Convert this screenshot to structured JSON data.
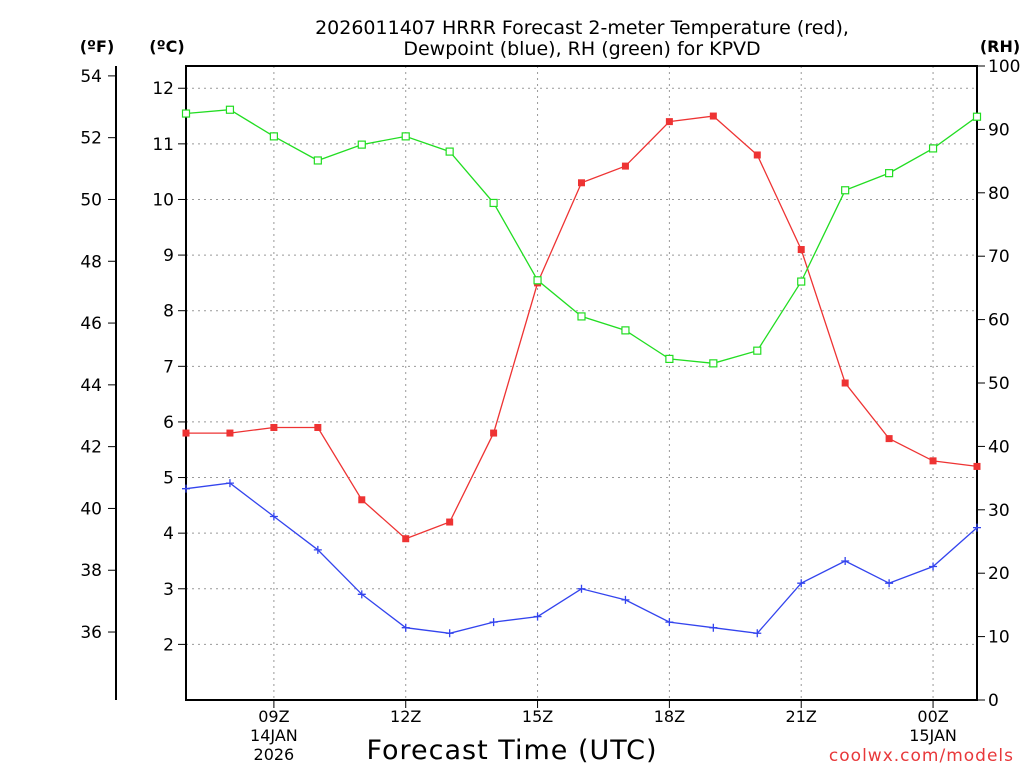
{
  "chart_data": {
    "type": "line",
    "title_line1": "2026011407 HRRR Forecast 2-meter Temperature (red),",
    "title_line2": "Dewpoint (blue), RH (green) for KPVD",
    "xlabel": "Forecast Time (UTC)",
    "credit": "coolwx.com/models",
    "units": {
      "fahrenheit": "(ºF)",
      "celsius": "(ºC)",
      "rh": "(RH)"
    },
    "grid": true,
    "x_hours": [
      7,
      8,
      9,
      10,
      11,
      12,
      13,
      14,
      15,
      16,
      17,
      18,
      19,
      20,
      21,
      22,
      23,
      24,
      25
    ],
    "x_ticks": [
      {
        "hour": 9,
        "label": "09Z",
        "sub1": "14JAN",
        "sub2": "2026"
      },
      {
        "hour": 12,
        "label": "12Z",
        "sub1": "",
        "sub2": ""
      },
      {
        "hour": 15,
        "label": "15Z",
        "sub1": "",
        "sub2": ""
      },
      {
        "hour": 18,
        "label": "18Z",
        "sub1": "",
        "sub2": ""
      },
      {
        "hour": 21,
        "label": "21Z",
        "sub1": "",
        "sub2": ""
      },
      {
        "hour": 24,
        "label": "00Z",
        "sub1": "15JAN",
        "sub2": ""
      }
    ],
    "x_range": [
      7,
      25
    ],
    "celsius_range": [
      1.0,
      12.4
    ],
    "celsius_ticks": [
      "2",
      "3",
      "4",
      "5",
      "6",
      "7",
      "8",
      "9",
      "10",
      "11",
      "12"
    ],
    "fahrenheit_ticks": [
      "36",
      "38",
      "40",
      "42",
      "44",
      "46",
      "48",
      "50",
      "52",
      "54"
    ],
    "rh_range": [
      0,
      100
    ],
    "rh_ticks": [
      "0",
      "10",
      "20",
      "30",
      "40",
      "50",
      "60",
      "70",
      "80",
      "90",
      "100"
    ],
    "series": [
      {
        "name": "Temperature",
        "color": "#ee3333",
        "unit": "C",
        "marker": "filled-square",
        "values": [
          5.8,
          5.8,
          5.9,
          5.9,
          4.6,
          3.9,
          4.2,
          5.8,
          8.5,
          10.3,
          10.6,
          11.4,
          11.5,
          10.8,
          9.1,
          6.7,
          5.7,
          5.3,
          5.2
        ]
      },
      {
        "name": "Dewpoint",
        "color": "#3344ee",
        "unit": "C",
        "marker": "plus",
        "values": [
          4.8,
          4.9,
          4.3,
          3.7,
          2.9,
          2.3,
          2.2,
          2.4,
          2.5,
          3.0,
          2.8,
          2.4,
          2.3,
          2.2,
          3.1,
          3.5,
          3.1,
          3.4,
          4.1
        ]
      },
      {
        "name": "RH",
        "color": "#22dd22",
        "unit": "%",
        "marker": "open-square",
        "values": [
          92.5,
          93.1,
          88.9,
          85.1,
          87.6,
          88.9,
          86.5,
          78.4,
          66.2,
          60.5,
          58.3,
          53.8,
          53.1,
          55.1,
          66.0,
          80.4,
          83.1,
          87.0,
          92.0
        ]
      }
    ]
  }
}
